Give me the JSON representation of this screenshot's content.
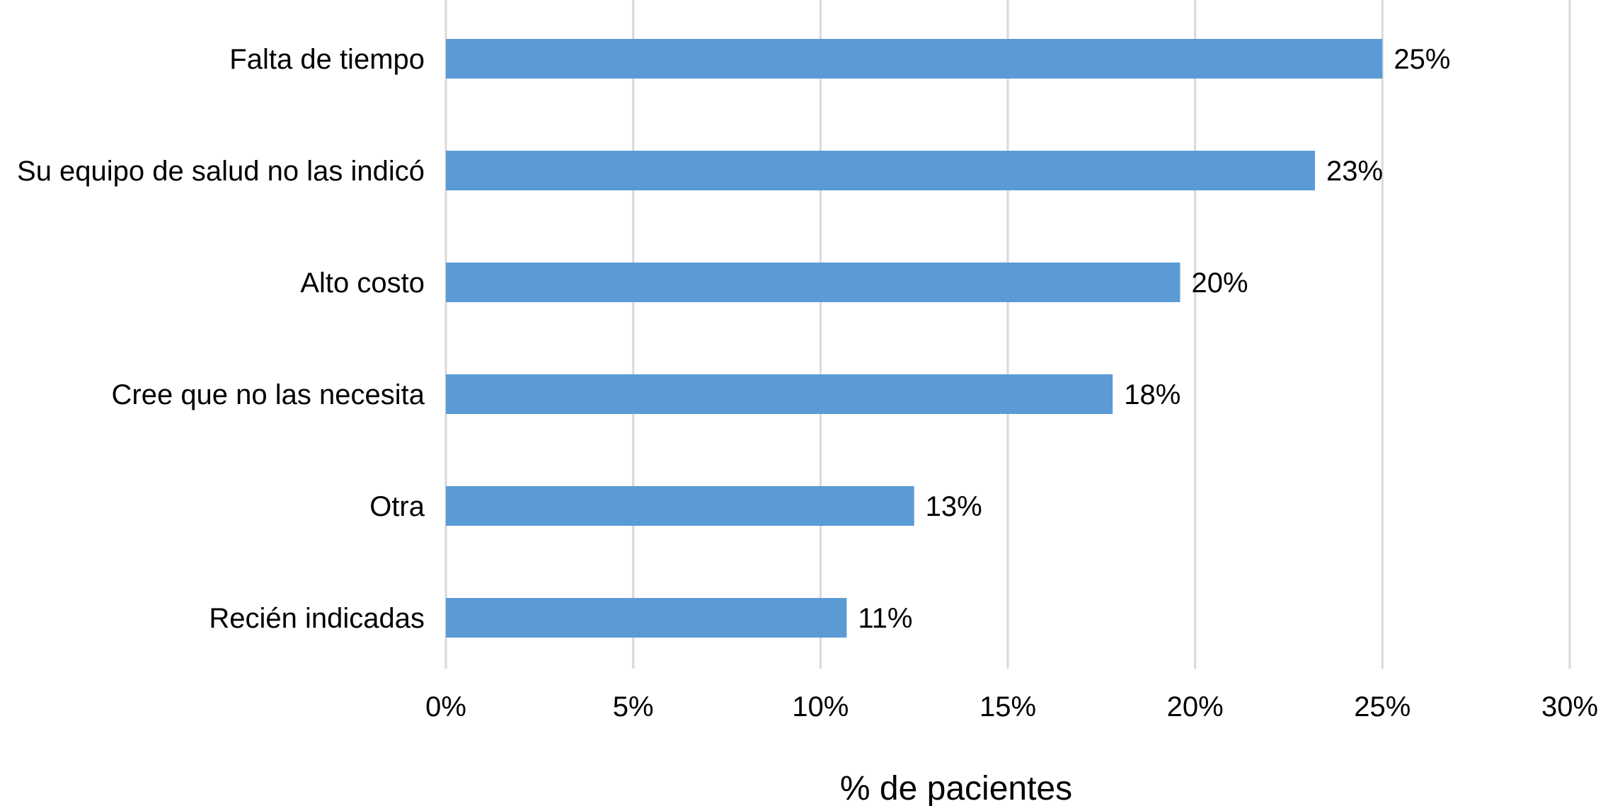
{
  "chart_data": {
    "type": "bar",
    "orientation": "horizontal",
    "categories": [
      "Falta de tiempo",
      "Su equipo de salud no las indicó",
      "Alto costo",
      "Cree que no las necesita",
      "Otra",
      "Recién indicadas"
    ],
    "values": [
      25,
      23.2,
      19.6,
      17.8,
      12.5,
      10.7
    ],
    "value_labels": [
      "25%",
      "23%",
      "20%",
      "18%",
      "13%",
      "11%"
    ],
    "xlabel": "% de pacientes",
    "xlim": [
      0,
      30
    ],
    "xticks": [
      0,
      5,
      10,
      15,
      20,
      25,
      30
    ],
    "xtick_labels": [
      "0%",
      "5%",
      "10%",
      "15%",
      "20%",
      "25%",
      "30%"
    ],
    "grid": "vertical",
    "legend": "none",
    "colors": {
      "bar": "#5b9bd5",
      "grid": "#d9d9d9"
    }
  }
}
